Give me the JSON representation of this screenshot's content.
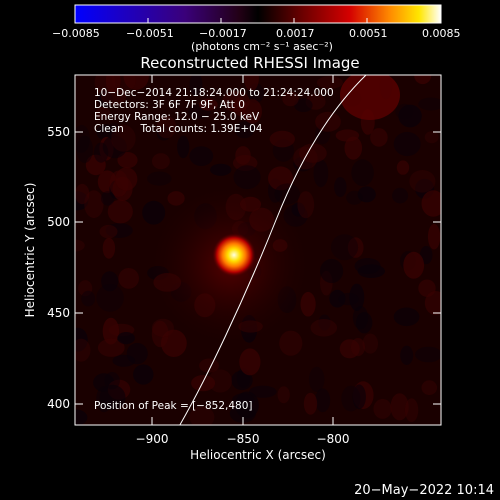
{
  "colorbar": {
    "ticks": [
      "−0.0085",
      "−0.0051",
      "−0.0017",
      "0.0017",
      "0.0051",
      "0.0085"
    ],
    "units": "(photons cm⁻² s⁻¹ asec⁻²)"
  },
  "title": "Reconstructed RHESSI Image",
  "info": {
    "line1": "10−Dec−2014 21:18:24.000 to 21:24:24.000",
    "line2": "Detectors: 3F 6F 7F 9F, Att 0",
    "line3": "Energy Range: 12.0 − 25.0 keV",
    "line4": "Clean     Total counts: 1.39E+04"
  },
  "peak_label": "Position of Peak = [−852,480]",
  "x_axis": {
    "label": "Heliocentric X (arcsec)",
    "ticks": [
      "−900",
      "−850",
      "−800"
    ]
  },
  "y_axis": {
    "label": "Heliocentric Y (arcsec)",
    "ticks": [
      "550",
      "500",
      "450",
      "400"
    ]
  },
  "timestamp": "20−May−2022 10:14",
  "colors": {
    "background": "#000000",
    "source_core": "#ffffc0",
    "limb_line": "#ffffff"
  }
}
